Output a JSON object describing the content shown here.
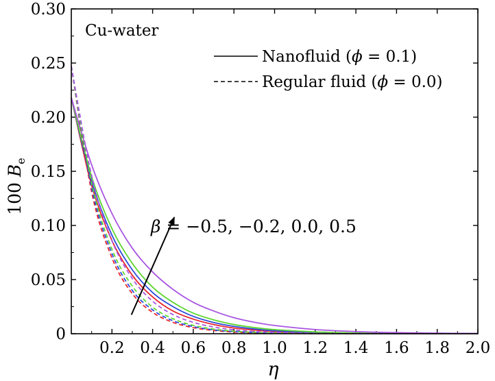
{
  "chart_data": {
    "type": "line",
    "title": "",
    "xlabel": "η",
    "ylabel_prefix": "100 ",
    "ylabel_var": "B",
    "ylabel_sub": "e",
    "xlim": [
      0,
      2.0
    ],
    "ylim": [
      0,
      0.3
    ],
    "x_ticks": [
      "0.2",
      "0.4",
      "0.6",
      "0.8",
      "1.0",
      "1.2",
      "1.4",
      "1.6",
      "1.8",
      "2.0"
    ],
    "y_ticks": [
      "0",
      "0.05",
      "0.10",
      "0.15",
      "0.20",
      "0.25",
      "0.30"
    ],
    "annotation_box_text": "Cu-water",
    "arrow_label_var": "β",
    "arrow_label_values": " = −0.5, −0.2, 0.0, 0.5",
    "arrow": {
      "from": [
        0.1,
        0.02
      ],
      "to": [
        0.5,
        0.1
      ]
    },
    "legend": {
      "placement": "top-right",
      "entries": [
        {
          "style": "solid",
          "prefix": "Nanofluid (",
          "var": "ϕ",
          "suffix": " = 0.1)"
        },
        {
          "style": "dashed",
          "prefix": "Regular fluid (",
          "var": "ϕ",
          "suffix": " = 0.0)"
        }
      ]
    },
    "series": [
      {
        "beta": "-0.5",
        "fluid": "nanofluid",
        "style": "solid",
        "color": "#e8242c",
        "x": [
          0,
          0.1,
          0.2,
          0.3,
          0.4,
          0.5,
          0.6,
          0.7,
          0.8,
          0.9,
          1.0,
          1.2,
          1.4,
          1.6,
          1.8,
          2.0
        ],
        "y": [
          0.218,
          0.137,
          0.086,
          0.054,
          0.034,
          0.021,
          0.0135,
          0.0085,
          0.0053,
          0.0034,
          0.0021,
          0.0008,
          0.0003,
          0.0001,
          5e-05,
          2e-05
        ]
      },
      {
        "beta": "-0.2",
        "fluid": "nanofluid",
        "style": "solid",
        "color": "#2b4bdc",
        "x": [
          0,
          0.1,
          0.2,
          0.3,
          0.4,
          0.5,
          0.6,
          0.7,
          0.8,
          0.9,
          1.0,
          1.2,
          1.4,
          1.6,
          1.8,
          2.0
        ],
        "y": [
          0.218,
          0.141,
          0.091,
          0.059,
          0.038,
          0.025,
          0.016,
          0.0104,
          0.0068,
          0.0044,
          0.0028,
          0.0012,
          0.0005,
          0.0002,
          0.0001,
          4e-05
        ]
      },
      {
        "beta": "0.0",
        "fluid": "nanofluid",
        "style": "solid",
        "color": "#5ed62e",
        "x": [
          0,
          0.1,
          0.2,
          0.3,
          0.4,
          0.5,
          0.6,
          0.7,
          0.8,
          0.9,
          1.0,
          1.2,
          1.4,
          1.6,
          1.8,
          2.0
        ],
        "y": [
          0.218,
          0.145,
          0.097,
          0.065,
          0.043,
          0.029,
          0.019,
          0.0128,
          0.0085,
          0.0057,
          0.0038,
          0.0017,
          0.0007,
          0.0003,
          0.0001,
          6e-05
        ]
      },
      {
        "beta": "0.5",
        "fluid": "nanofluid",
        "style": "solid",
        "color": "#a855e0",
        "x": [
          0,
          0.1,
          0.2,
          0.3,
          0.4,
          0.5,
          0.6,
          0.7,
          0.8,
          0.9,
          1.0,
          1.2,
          1.4,
          1.6,
          1.8,
          2.0
        ],
        "y": [
          0.218,
          0.156,
          0.111,
          0.079,
          0.057,
          0.041,
          0.029,
          0.021,
          0.0148,
          0.0106,
          0.0076,
          0.0039,
          0.002,
          0.001,
          0.0005,
          0.0003
        ]
      },
      {
        "beta": "-0.5",
        "fluid": "regular",
        "style": "dashed",
        "color": "#e8242c",
        "x": [
          0,
          0.1,
          0.2,
          0.3,
          0.4,
          0.5,
          0.6,
          0.7,
          0.8,
          0.9,
          1.0,
          1.2,
          1.4,
          1.6,
          1.8,
          2.0
        ],
        "y": [
          0.247,
          0.131,
          0.07,
          0.037,
          0.0197,
          0.0105,
          0.0056,
          0.003,
          0.0016,
          0.0008,
          0.0004,
          0.0001,
          3e-05,
          1e-05,
          0.0,
          0.0
        ]
      },
      {
        "beta": "-0.2",
        "fluid": "regular",
        "style": "dashed",
        "color": "#2b4bdc",
        "x": [
          0,
          0.1,
          0.2,
          0.3,
          0.4,
          0.5,
          0.6,
          0.7,
          0.8,
          0.9,
          1.0,
          1.2,
          1.4,
          1.6,
          1.8,
          2.0
        ],
        "y": [
          0.247,
          0.135,
          0.074,
          0.04,
          0.022,
          0.012,
          0.0066,
          0.0036,
          0.002,
          0.0011,
          0.0006,
          0.0002,
          5e-05,
          2e-05,
          0.0,
          0.0
        ]
      },
      {
        "beta": "0.0",
        "fluid": "regular",
        "style": "dashed",
        "color": "#5ed62e",
        "x": [
          0,
          0.1,
          0.2,
          0.3,
          0.4,
          0.5,
          0.6,
          0.7,
          0.8,
          0.9,
          1.0,
          1.2,
          1.4,
          1.6,
          1.8,
          2.0
        ],
        "y": [
          0.247,
          0.139,
          0.078,
          0.044,
          0.0245,
          0.0138,
          0.0077,
          0.0043,
          0.0024,
          0.0014,
          0.0008,
          0.0002,
          8e-05,
          2e-05,
          0.0,
          0.0
        ]
      },
      {
        "beta": "0.5",
        "fluid": "regular",
        "style": "dashed",
        "color": "#a855e0",
        "x": [
          0,
          0.1,
          0.2,
          0.3,
          0.4,
          0.5,
          0.6,
          0.7,
          0.8,
          0.9,
          1.0,
          1.2,
          1.4,
          1.6,
          1.8,
          2.0
        ],
        "y": [
          0.247,
          0.146,
          0.086,
          0.051,
          0.03,
          0.0177,
          0.0105,
          0.0062,
          0.0036,
          0.0021,
          0.0013,
          0.0004,
          0.0002,
          5e-05,
          2e-05,
          0.0
        ]
      }
    ]
  }
}
